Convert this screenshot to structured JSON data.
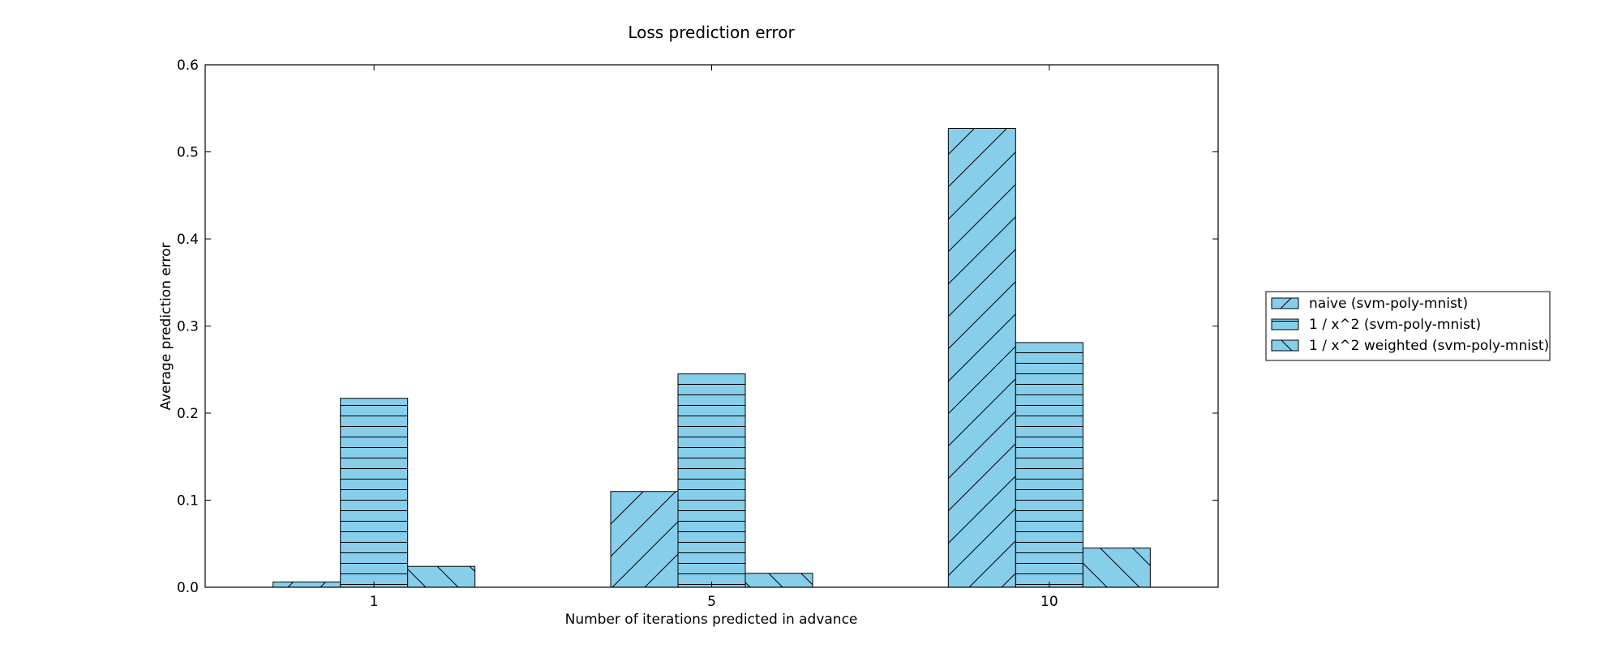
{
  "chart_data": {
    "type": "bar",
    "title": "Loss prediction error",
    "xlabel": "Number of iterations predicted in advance",
    "ylabel": "Average prediction error",
    "categories": [
      "1",
      "5",
      "10"
    ],
    "ylim": [
      0,
      0.6
    ],
    "yticks": [
      "0.0",
      "0.1",
      "0.2",
      "0.3",
      "0.4",
      "0.5",
      "0.6"
    ],
    "grid": false,
    "legend_position": "outside-right",
    "bar_color": "#87ceeb",
    "series": [
      {
        "name": "naive (svm-poly-mnist)",
        "hatch": "forward-diagonal",
        "values": [
          0.006,
          0.11,
          0.527
        ]
      },
      {
        "name": "1 / x^2 (svm-poly-mnist)",
        "hatch": "horizontal",
        "values": [
          0.217,
          0.245,
          0.281
        ]
      },
      {
        "name": "1 / x^2 weighted (svm-poly-mnist)",
        "hatch": "back-diagonal",
        "values": [
          0.024,
          0.016,
          0.045
        ]
      }
    ]
  }
}
